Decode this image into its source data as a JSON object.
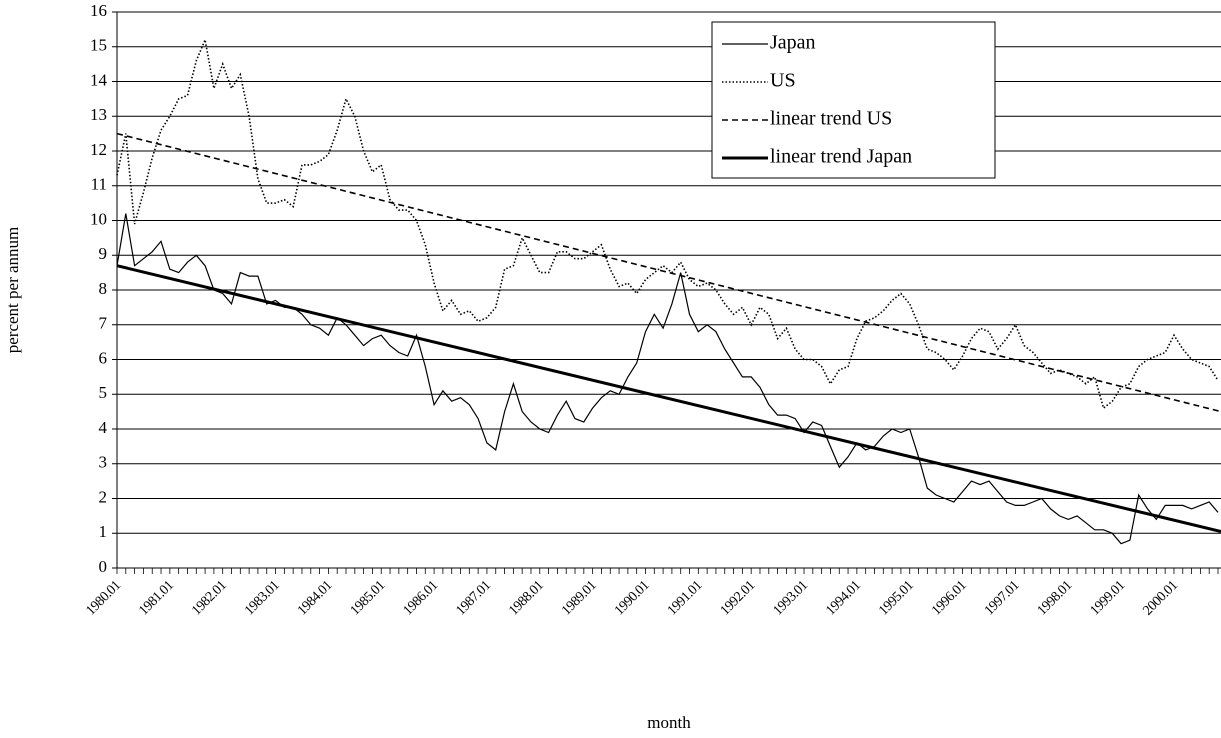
{
  "chart_data": {
    "type": "line",
    "x_label": "month",
    "y_label": "percent per annum",
    "categories": [
      "1980.01",
      null,
      null,
      null,
      null,
      null,
      "1981.01",
      null,
      null,
      null,
      null,
      null,
      "1982.01",
      null,
      null,
      null,
      null,
      null,
      "1983.01",
      null,
      null,
      null,
      null,
      null,
      "1984.01",
      null,
      null,
      null,
      null,
      null,
      "1985.01",
      null,
      null,
      null,
      null,
      null,
      "1986.01",
      null,
      null,
      null,
      null,
      null,
      "1987.01",
      null,
      null,
      null,
      null,
      null,
      "1988.01",
      null,
      null,
      null,
      null,
      null,
      "1989.01",
      null,
      null,
      null,
      null,
      null,
      "1990.01",
      null,
      null,
      null,
      null,
      null,
      "1991.01",
      null,
      null,
      null,
      null,
      null,
      "1992.01",
      null,
      null,
      null,
      null,
      null,
      "1993.01",
      null,
      null,
      null,
      null,
      null,
      "1994.01",
      null,
      null,
      null,
      null,
      null,
      "1995.01",
      null,
      null,
      null,
      null,
      null,
      "1996.01",
      null,
      null,
      null,
      null,
      null,
      "1997.01",
      null,
      null,
      null,
      null,
      null,
      "1998.01",
      null,
      null,
      null,
      null,
      null,
      "1999.01",
      null,
      null,
      null,
      null,
      null,
      "2000.01",
      null,
      null,
      null,
      null,
      null
    ],
    "series": [
      {
        "name": "Japan",
        "color": "#000000",
        "line_style": "solid",
        "values": [
          8.7,
          10.2,
          8.7,
          8.9,
          9.1,
          9.4,
          8.6,
          8.5,
          8.8,
          9.0,
          8.7,
          8.0,
          7.9,
          7.6,
          8.5,
          8.4,
          8.4,
          7.6,
          7.7,
          7.5,
          7.5,
          7.3,
          7.0,
          6.9,
          6.7,
          7.2,
          7.0,
          6.7,
          6.4,
          6.6,
          6.7,
          6.4,
          6.2,
          6.1,
          6.7,
          5.8,
          4.7,
          5.1,
          4.8,
          4.9,
          4.7,
          4.3,
          3.6,
          3.4,
          4.5,
          5.3,
          4.5,
          4.2,
          4.0,
          3.9,
          4.4,
          4.8,
          4.3,
          4.2,
          4.6,
          4.9,
          5.1,
          5.0,
          5.5,
          5.9,
          6.8,
          7.3,
          6.9,
          7.6,
          8.5,
          7.3,
          6.8,
          7.0,
          6.8,
          6.3,
          5.9,
          5.5,
          5.5,
          5.2,
          4.7,
          4.4,
          4.4,
          4.3,
          3.9,
          4.2,
          4.1,
          3.5,
          2.9,
          3.2,
          3.6,
          3.4,
          3.5,
          3.8,
          4.0,
          3.9,
          4.0,
          3.2,
          2.3,
          2.1,
          2.0,
          1.9,
          2.2,
          2.5,
          2.4,
          2.5,
          2.2,
          1.9,
          1.8,
          1.8,
          1.9,
          2.0,
          1.7,
          1.5,
          1.4,
          1.5,
          1.3,
          1.1,
          1.1,
          1.0,
          0.7,
          0.8,
          2.1,
          1.7,
          1.4,
          1.8,
          1.8,
          1.8,
          1.7,
          1.8,
          1.9,
          1.6
        ]
      },
      {
        "name": "US",
        "color": "#000000",
        "line_style": "dotted",
        "values": [
          11.3,
          12.5,
          9.9,
          10.8,
          11.8,
          12.6,
          13.0,
          13.5,
          13.6,
          14.6,
          15.2,
          13.8,
          14.5,
          13.8,
          14.2,
          13.0,
          11.2,
          10.5,
          10.5,
          10.6,
          10.4,
          11.6,
          11.6,
          11.7,
          11.9,
          12.6,
          13.5,
          13.0,
          12.0,
          11.4,
          11.6,
          10.6,
          10.3,
          10.3,
          10.0,
          9.3,
          8.2,
          7.4,
          7.7,
          7.3,
          7.4,
          7.1,
          7.2,
          7.5,
          8.6,
          8.7,
          9.5,
          9.0,
          8.5,
          8.5,
          9.1,
          9.1,
          8.9,
          8.9,
          9.1,
          9.3,
          8.6,
          8.1,
          8.2,
          7.9,
          8.3,
          8.5,
          8.7,
          8.5,
          8.8,
          8.3,
          8.1,
          8.2,
          8.0,
          7.6,
          7.3,
          7.5,
          7.0,
          7.5,
          7.3,
          6.6,
          6.9,
          6.3,
          6.0,
          6.0,
          5.8,
          5.3,
          5.7,
          5.8,
          6.6,
          7.1,
          7.2,
          7.4,
          7.7,
          7.9,
          7.6,
          7.0,
          6.3,
          6.2,
          6.0,
          5.7,
          6.1,
          6.6,
          6.9,
          6.8,
          6.3,
          6.6,
          7.0,
          6.4,
          6.2,
          5.9,
          5.6,
          5.7,
          5.6,
          5.5,
          5.3,
          5.5,
          4.6,
          4.8,
          5.2,
          5.3,
          5.8,
          6.0,
          6.1,
          6.2,
          6.7,
          6.3,
          6.0,
          5.9,
          5.8,
          5.4
        ]
      }
    ],
    "trend_lines": [
      {
        "name": "linear trend US",
        "color": "#000000",
        "line_style": "dashed",
        "values": [
          12.5,
          4.5
        ]
      },
      {
        "name": "linear trend Japan",
        "color": "#000000",
        "line_style": "bold",
        "values": [
          8.7,
          1.05
        ]
      }
    ],
    "ylim": [
      0,
      16
    ],
    "yticks": [
      0,
      1,
      2,
      3,
      4,
      5,
      6,
      7,
      8,
      9,
      10,
      11,
      12,
      13,
      14,
      15,
      16
    ],
    "grid": true,
    "legend": "top-right"
  }
}
